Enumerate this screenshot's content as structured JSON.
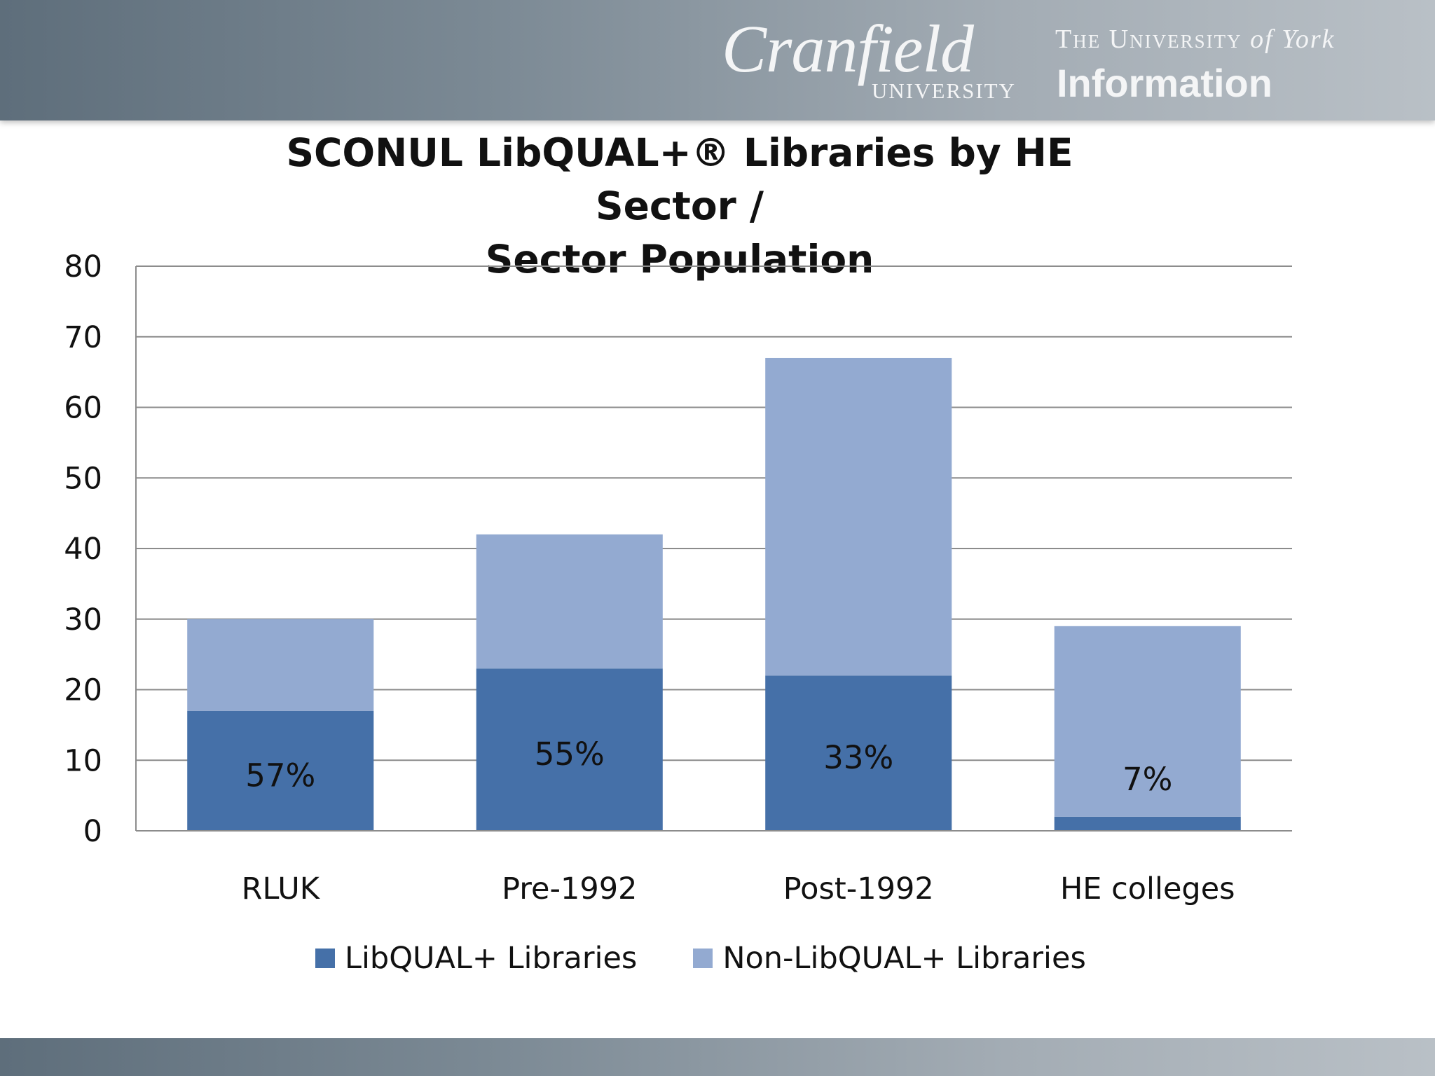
{
  "header": {
    "logo_left_main": "Cranfield",
    "logo_left_sub": "UNIVERSITY",
    "logo_right_prefix": "The University ",
    "logo_right_script": "of York",
    "logo_right_main": "Information"
  },
  "chart_data": {
    "type": "bar",
    "stacked": true,
    "title_line1": "SCONUL LibQUAL+® Libraries by HE Sector /",
    "title_line2": "Sector Population",
    "categories": [
      "RLUK",
      "Pre-1992",
      "Post-1992",
      "HE colleges"
    ],
    "series": [
      {
        "name": "LibQUAL+ Libraries",
        "values": [
          17,
          23,
          22,
          2
        ],
        "color": "#4570a8"
      },
      {
        "name": "Non-LibQUAL+ Libraries",
        "values": [
          13,
          19,
          45,
          27
        ],
        "color": "#93aad1"
      }
    ],
    "data_labels": [
      "57%",
      "55%",
      "33%",
      "7%"
    ],
    "ylim": [
      0,
      80
    ],
    "yticks": [
      0,
      10,
      20,
      30,
      40,
      50,
      60,
      70,
      80
    ],
    "grid": true,
    "legend_position": "bottom"
  }
}
